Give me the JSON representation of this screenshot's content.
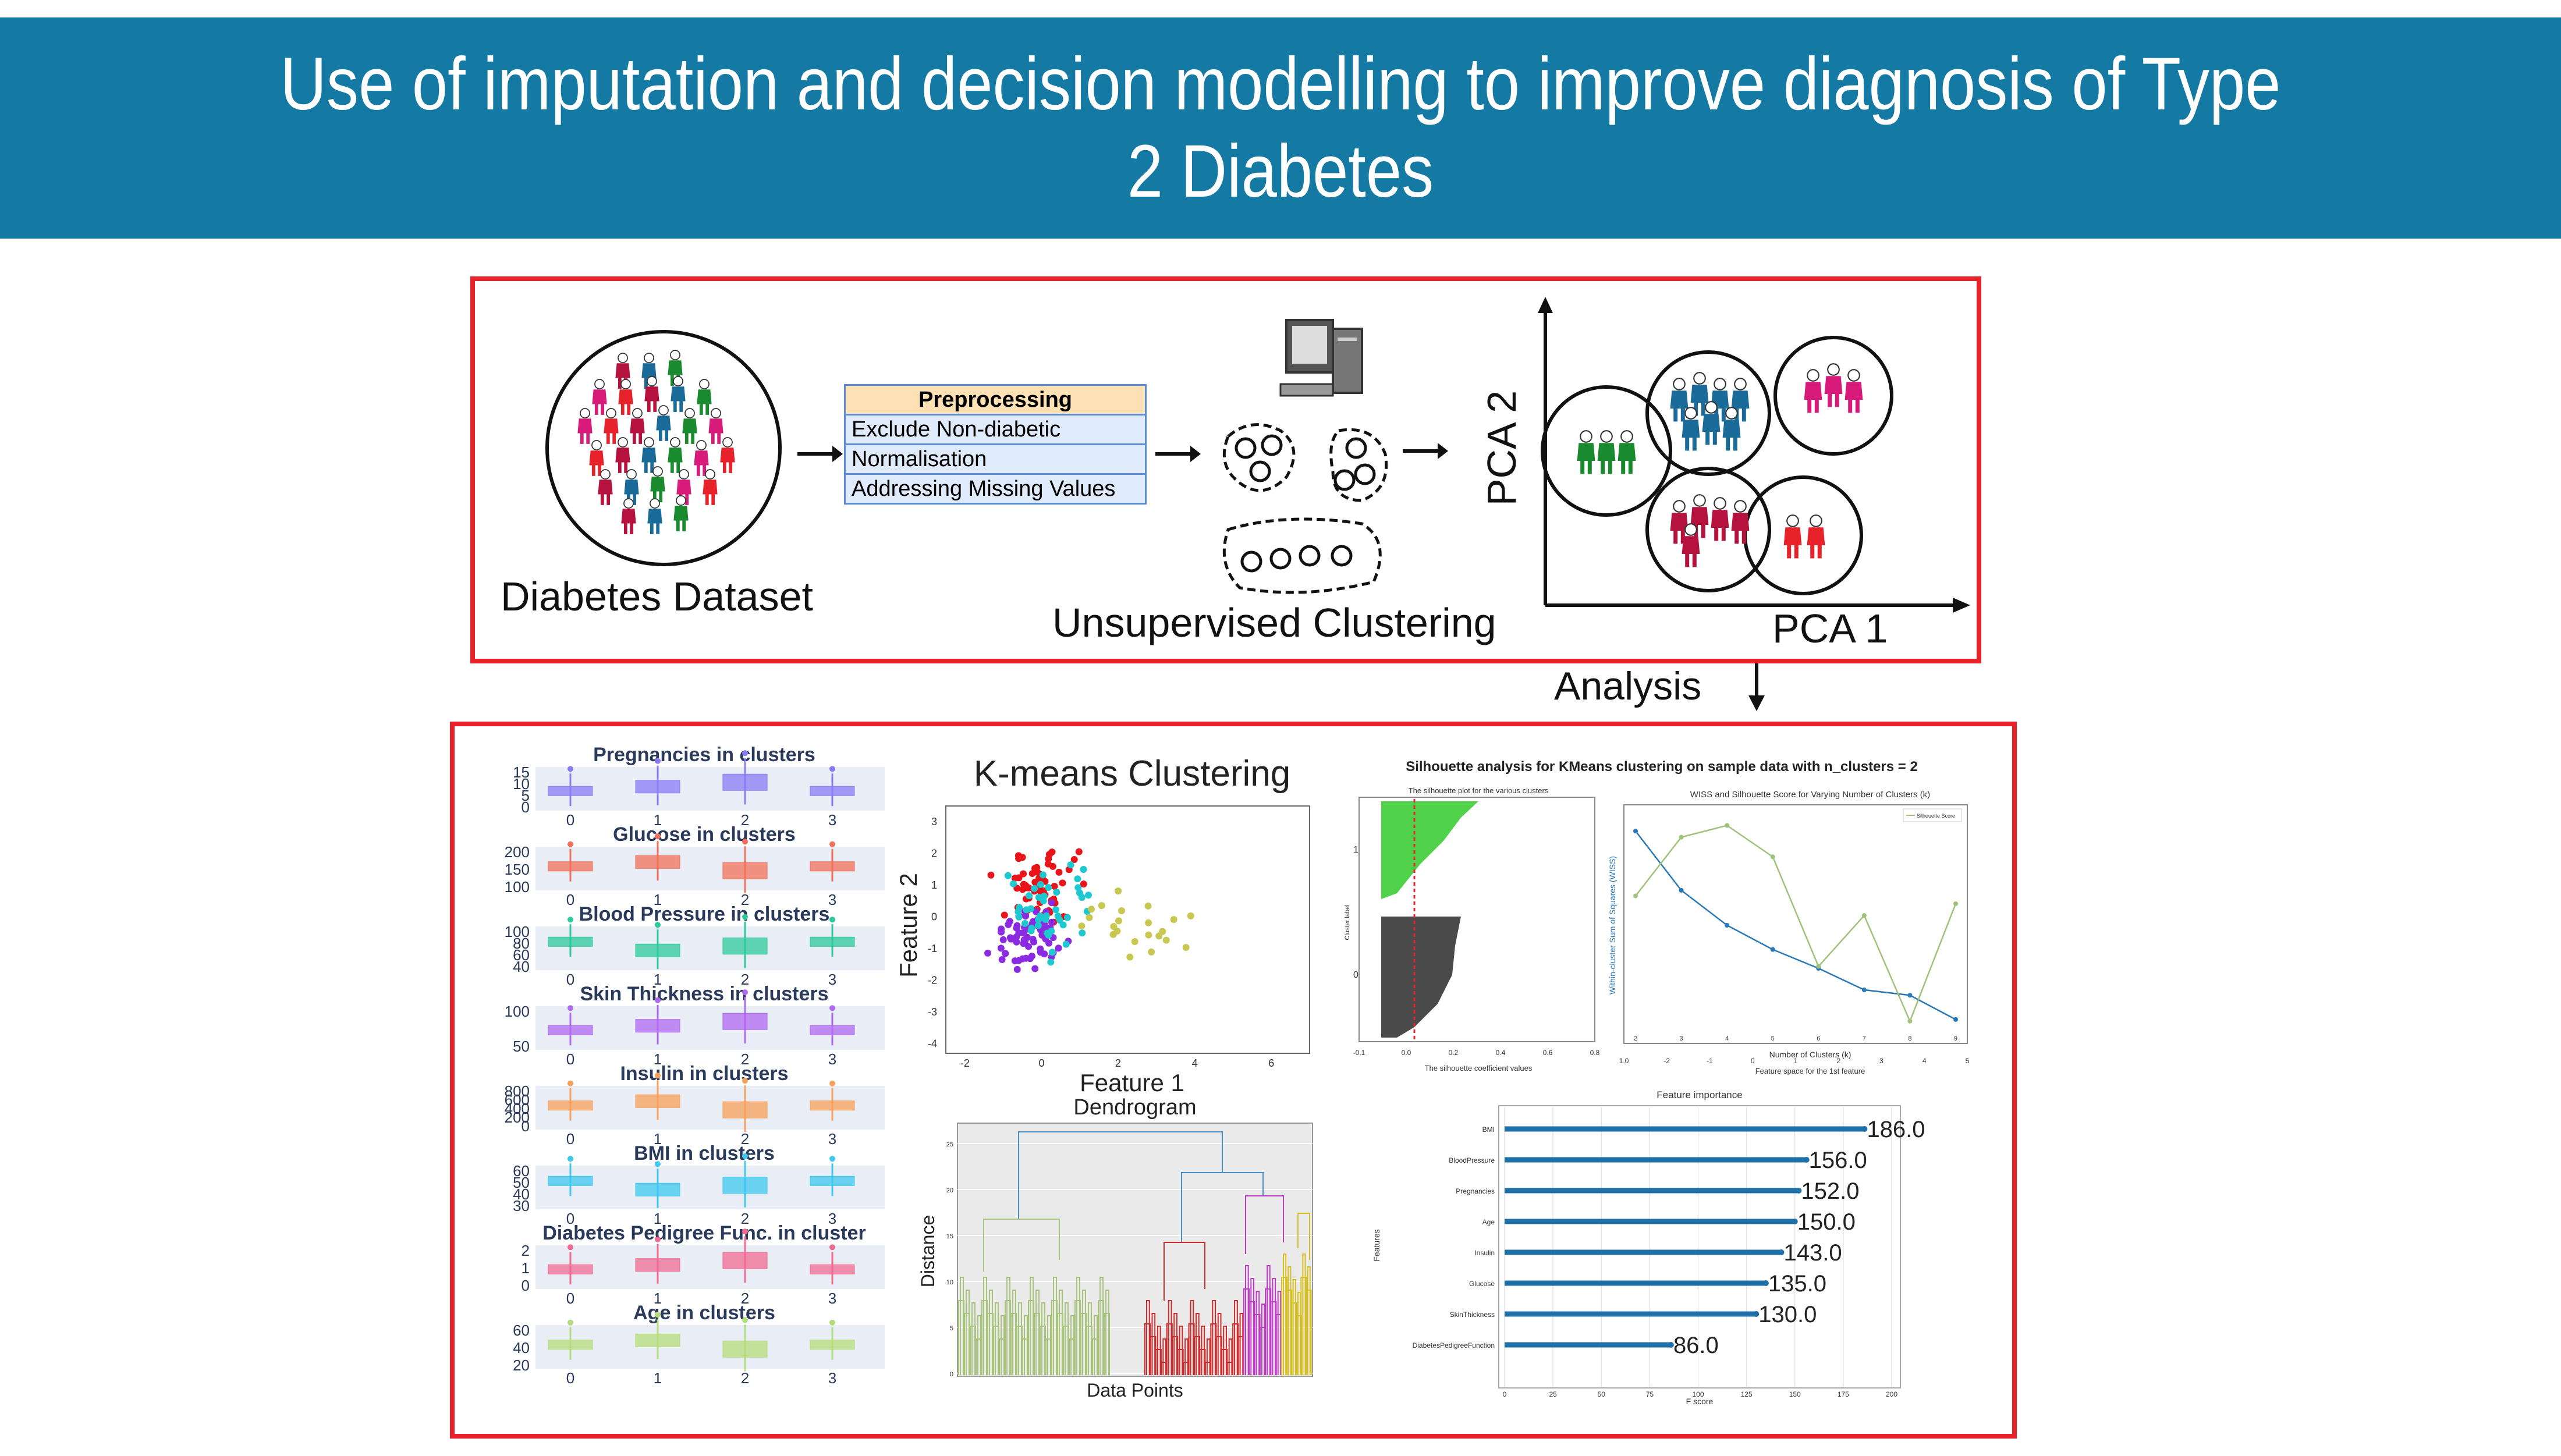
{
  "title": "Use of imputation and decision modelling to improve diagnosis of Type 2 Diabetes",
  "pipeline": {
    "dataset_label": "Diabetes Dataset",
    "preprocessing": {
      "header": "Preprocessing",
      "steps": [
        "Exclude Non-diabetic",
        "Normalisation",
        "Addressing Missing Values"
      ]
    },
    "clustering_label": "Unsupervised Clustering",
    "pca_x_label": "PCA 1",
    "pca_y_label": "PCA 2",
    "analysis_label": "Analysis"
  },
  "colors": {
    "banner": "#1479a3",
    "box_border": "#e8222a",
    "people": [
      "#b5123e",
      "#1a6b9a",
      "#1a8a2e",
      "#d81b7a",
      "#e8222a"
    ]
  },
  "boxplots": {
    "categories": [
      "0",
      "1",
      "2",
      "3"
    ],
    "panels": [
      {
        "title": "Pregnancies in clusters",
        "ticks": [
          "15",
          "10",
          "5",
          "0"
        ],
        "color": "#8a7cf5"
      },
      {
        "title": "Glucose in clusters",
        "ticks": [
          "200",
          "150",
          "100"
        ],
        "color": "#f0705a"
      },
      {
        "title": "Blood Pressure in clusters",
        "ticks": [
          "100",
          "80",
          "60",
          "40"
        ],
        "color": "#2ec99a"
      },
      {
        "title": "Skin Thickness in clusters",
        "ticks": [
          "100",
          "50"
        ],
        "color": "#b06af0"
      },
      {
        "title": "Insulin in clusters",
        "ticks": [
          "800",
          "600",
          "400",
          "200",
          "0"
        ],
        "color": "#f7a05a"
      },
      {
        "title": "BMI in clusters",
        "ticks": [
          "60",
          "50",
          "40",
          "30"
        ],
        "color": "#3ec8ee"
      },
      {
        "title": "Diabetes Pedigree Func. in cluster",
        "ticks": [
          "2",
          "1",
          "0"
        ],
        "color": "#f06a92"
      },
      {
        "title": "Age in clusters",
        "ticks": [
          "60",
          "40",
          "20"
        ],
        "color": "#b5dc7a"
      }
    ]
  },
  "kmeans": {
    "title": "K-means Clustering",
    "xlabel": "Feature 1",
    "ylabel": "Feature 2",
    "xticks": [
      "-2",
      "0",
      "2",
      "4",
      "6"
    ],
    "yticks": [
      "3",
      "2",
      "1",
      "0",
      "-1",
      "-2",
      "-3",
      "-4"
    ]
  },
  "silhouette": {
    "title": "Silhouette analysis for KMeans clustering on sample data with n_clusters = 2",
    "left_title": "The silhouette plot for the various clusters",
    "left_xlabel": "The silhouette coefficient values",
    "left_ylabel": "Cluster label",
    "left_cluster_labels": [
      "1",
      "0"
    ],
    "left_xticks": [
      "-0.1",
      "0.0",
      "0.2",
      "0.4",
      "0.6",
      "0.8"
    ],
    "right_title": "WISS and Silhouette Score for Varying Number of Clusters (k)",
    "right_ylabel": "Within-cluster Sum of Squares (WISS)",
    "right_xlabel": "Number of Clusters (k)",
    "right_xlabel2": "Feature space for the 1st feature",
    "legend": "Silhouette Score",
    "k_ticks": [
      "2",
      "3",
      "4",
      "5",
      "6",
      "7",
      "8",
      "9"
    ],
    "feature_ticks": [
      "1.0",
      "-2",
      "-1",
      "0",
      "1",
      "2",
      "3",
      "4",
      "5"
    ]
  },
  "dendrogram": {
    "title": "Dendrogram",
    "xlabel": "Data Points",
    "ylabel": "Distance",
    "yticks": [
      "25",
      "20",
      "15",
      "10",
      "5",
      "0"
    ]
  },
  "feature_importance": {
    "title": "Feature importance",
    "xlabel": "F score",
    "ylabel": "Features",
    "xticks": [
      "0",
      "25",
      "50",
      "75",
      "100",
      "125",
      "150",
      "175",
      "200"
    ]
  },
  "chart_data": [
    {
      "type": "bar",
      "title": "Feature importance",
      "orientation": "horizontal",
      "categories": [
        "BMI",
        "BloodPressure",
        "Pregnancies",
        "Age",
        "Insulin",
        "Glucose",
        "SkinThickness",
        "DiabetesPedigreeFunction"
      ],
      "values": [
        186.0,
        156.0,
        152.0,
        150.0,
        143.0,
        135.0,
        130.0,
        86.0
      ],
      "value_labels": [
        "186.0",
        "156.0",
        "152.0",
        "150.0",
        "143.0",
        "135.0",
        "130.0",
        "86.0"
      ],
      "xlabel": "F score",
      "ylabel": "Features",
      "xlim": [
        0,
        200
      ]
    },
    {
      "type": "line",
      "title": "WISS and Silhouette Score for Varying Number of Clusters (k)",
      "x": [
        2,
        3,
        4,
        5,
        6,
        7,
        8,
        9
      ],
      "series": [
        {
          "name": "WISS",
          "values": [
            1800,
            1580,
            1450,
            1360,
            1290,
            1210,
            1190,
            1100
          ]
        },
        {
          "name": "Silhouette Score",
          "values": [
            0.3,
            0.45,
            0.48,
            0.4,
            0.12,
            0.25,
            -0.02,
            0.28
          ]
        }
      ],
      "xlabel": "Number of Clusters (k)",
      "ylabel": "Within-cluster Sum of Squares (WISS)"
    }
  ]
}
